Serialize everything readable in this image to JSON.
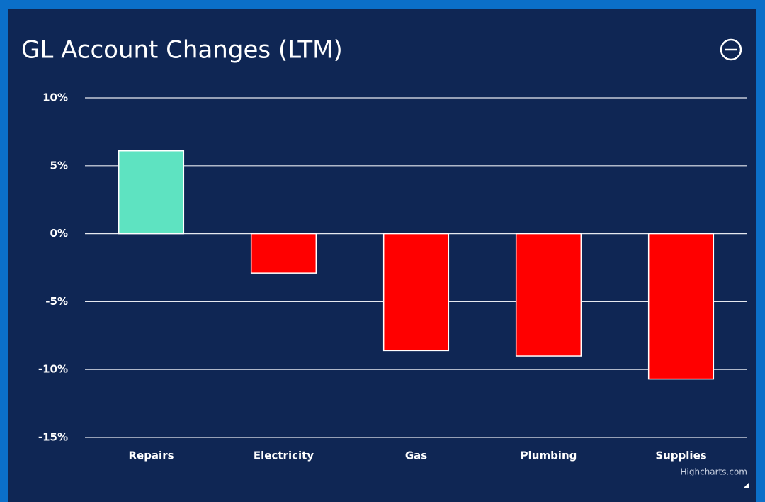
{
  "chart_data": {
    "type": "bar",
    "title": "GL Account Changes (LTM)",
    "categories": [
      "Repairs",
      "Electricity",
      "Gas",
      "Plumbing",
      "Supplies"
    ],
    "values": [
      6.1,
      -2.9,
      -8.6,
      -9.0,
      -10.7
    ],
    "colors": [
      "#5ee3c1",
      "#ff0000",
      "#ff0000",
      "#ff0000",
      "#ff0000"
    ],
    "ylim": [
      -15,
      10
    ],
    "yticks": [
      {
        "value": -15,
        "label": "-15%"
      },
      {
        "value": -10,
        "label": "-10%"
      },
      {
        "value": -5,
        "label": "-5%"
      },
      {
        "value": 0,
        "label": "0%"
      },
      {
        "value": 5,
        "label": "5%"
      },
      {
        "value": 10,
        "label": "10%"
      }
    ],
    "grid": true,
    "credits": "Highcharts.com"
  }
}
